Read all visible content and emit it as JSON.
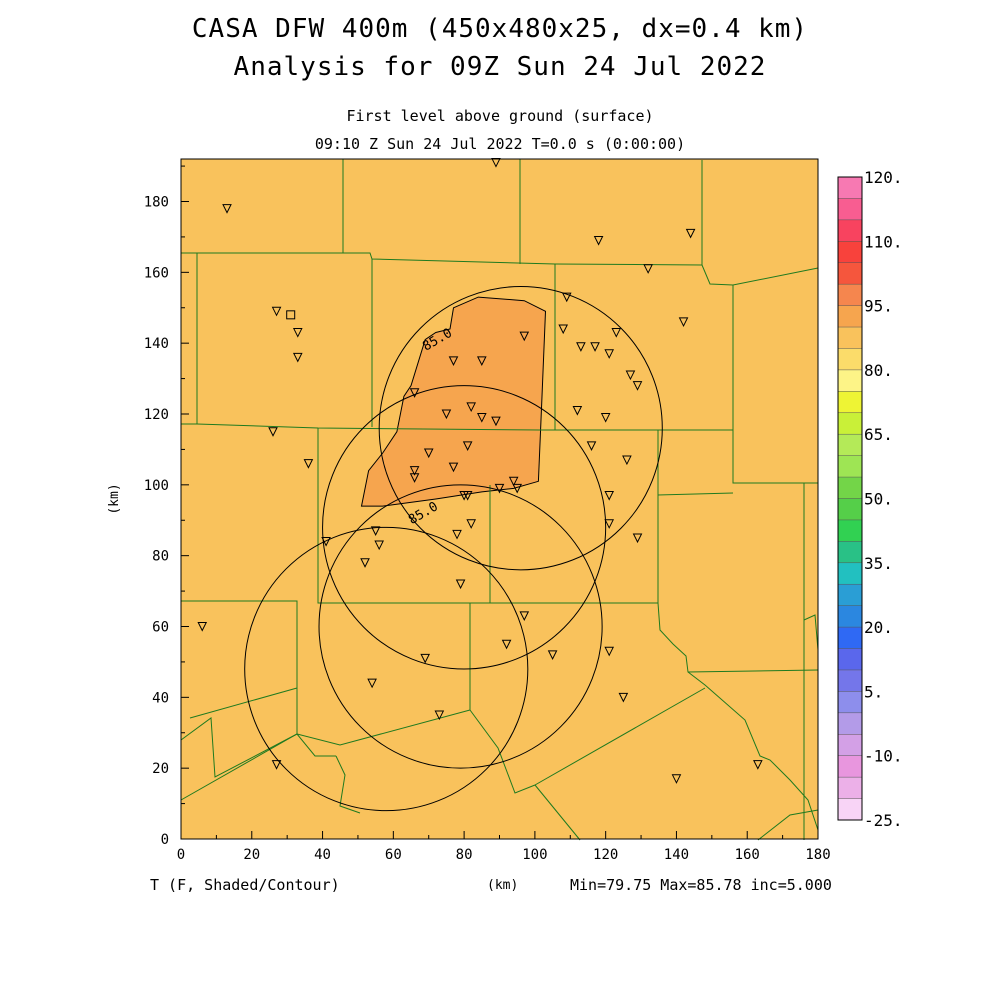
{
  "title_line1": "CASA DFW 400m (450x480x25, dx=0.4 km)",
  "title_line2": "Analysis for 09Z Sun 24 Jul 2022",
  "subtitle_line1": "First level above ground (surface)",
  "subtitle_line2": "09:10 Z Sun 24 Jul 2022   T=0.0 s (0:00:00)",
  "footer_variable": "T (F, Shaded/Contour)",
  "footer_unit": "(km)",
  "footer_stats": "Min=79.75 Max=85.78 inc=5.000",
  "colors": {
    "base_field": "#f9c25c",
    "warm_field": "#f6a54e",
    "boundaries": "#1f7a1f",
    "range_rings": "#000000"
  },
  "chart_data": {
    "type": "heatmap",
    "xlabel": "",
    "ylabel": "(km)",
    "xlim": [
      0,
      180
    ],
    "ylim": [
      0,
      192
    ],
    "x_ticks": [
      0,
      20,
      40,
      60,
      80,
      100,
      120,
      140,
      160,
      180
    ],
    "y_ticks": [
      0,
      20,
      40,
      60,
      80,
      100,
      120,
      140,
      160,
      180
    ],
    "min": 79.75,
    "max": 85.78,
    "contour_interval": 5.0,
    "contour_labels": [
      {
        "text": "85.0",
        "x": 73,
        "y": 140
      },
      {
        "text": "85.0",
        "x": 69,
        "y": 91
      }
    ],
    "warm_region": [
      [
        77,
        150
      ],
      [
        84,
        153
      ],
      [
        97,
        152
      ],
      [
        103,
        149
      ],
      [
        102,
        125
      ],
      [
        101,
        101
      ],
      [
        94,
        99
      ],
      [
        85,
        98
      ],
      [
        72,
        96
      ],
      [
        57,
        94
      ],
      [
        51,
        94
      ],
      [
        53,
        104
      ],
      [
        57,
        109
      ],
      [
        61,
        115
      ],
      [
        63,
        125
      ],
      [
        65,
        128
      ],
      [
        69,
        141
      ],
      [
        72,
        143
      ],
      [
        76,
        144
      ]
    ],
    "colorbar": {
      "labels": [
        "120.",
        "110.",
        "95.",
        "80.",
        "65.",
        "50.",
        "35.",
        "20.",
        "5.",
        "-10.",
        "-25."
      ],
      "colors": [
        "#f779b2",
        "#f85d91",
        "#f8435f",
        "#f8423c",
        "#f5563d",
        "#f5864e",
        "#f6a54e",
        "#f9c25c",
        "#fbdc6a",
        "#fdf487",
        "#eef434",
        "#c9f038",
        "#b4ea58",
        "#9ee554",
        "#73d548",
        "#55cf49",
        "#31d152",
        "#29c186",
        "#22c0c0",
        "#2a9ed5",
        "#2b87e0",
        "#2f69f4",
        "#5a67ec",
        "#7476ea",
        "#8d8eec",
        "#b39be8",
        "#d3a0e6",
        "#e896de",
        "#ecb0e8",
        "#f8d4f6"
      ]
    },
    "range_rings": [
      {
        "cx": 58,
        "cy": 48,
        "r": 40
      },
      {
        "cx": 80,
        "cy": 88,
        "r": 40
      },
      {
        "cx": 96,
        "cy": 116,
        "r": 40
      },
      {
        "cx": 79,
        "cy": 60,
        "r": 40
      }
    ],
    "stations": [
      [
        27,
        149
      ],
      [
        13,
        178
      ],
      [
        33,
        143
      ],
      [
        33,
        136
      ],
      [
        89,
        191
      ],
      [
        118,
        169
      ],
      [
        144,
        171
      ],
      [
        132,
        161
      ],
      [
        142,
        146
      ],
      [
        109,
        153
      ],
      [
        117,
        139
      ],
      [
        113,
        139
      ],
      [
        121,
        137
      ],
      [
        123,
        143
      ],
      [
        127,
        131
      ],
      [
        129,
        128
      ],
      [
        97,
        142
      ],
      [
        77,
        135
      ],
      [
        85,
        135
      ],
      [
        108,
        144
      ],
      [
        112,
        121
      ],
      [
        120,
        119
      ],
      [
        116,
        111
      ],
      [
        126,
        107
      ],
      [
        121,
        97
      ],
      [
        121,
        89
      ],
      [
        129,
        85
      ],
      [
        75,
        120
      ],
      [
        82,
        122
      ],
      [
        85,
        119
      ],
      [
        89,
        118
      ],
      [
        66,
        126
      ],
      [
        70,
        109
      ],
      [
        77,
        105
      ],
      [
        81,
        111
      ],
      [
        66,
        104
      ],
      [
        66,
        102
      ],
      [
        81,
        97
      ],
      [
        80,
        97
      ],
      [
        90,
        99
      ],
      [
        94,
        101
      ],
      [
        95,
        99
      ],
      [
        82,
        89
      ],
      [
        78,
        86
      ],
      [
        55,
        87
      ],
      [
        56,
        83
      ],
      [
        52,
        78
      ],
      [
        41,
        84
      ],
      [
        26,
        115
      ],
      [
        36,
        106
      ],
      [
        79,
        72
      ],
      [
        97,
        63
      ],
      [
        92,
        55
      ],
      [
        105,
        52
      ],
      [
        121,
        53
      ],
      [
        125,
        40
      ],
      [
        69,
        51
      ],
      [
        54,
        44
      ],
      [
        73,
        35
      ],
      [
        27,
        21
      ],
      [
        140,
        17
      ],
      [
        163,
        21
      ],
      [
        6,
        60
      ]
    ],
    "radar_site": [
      31,
      148
    ]
  }
}
